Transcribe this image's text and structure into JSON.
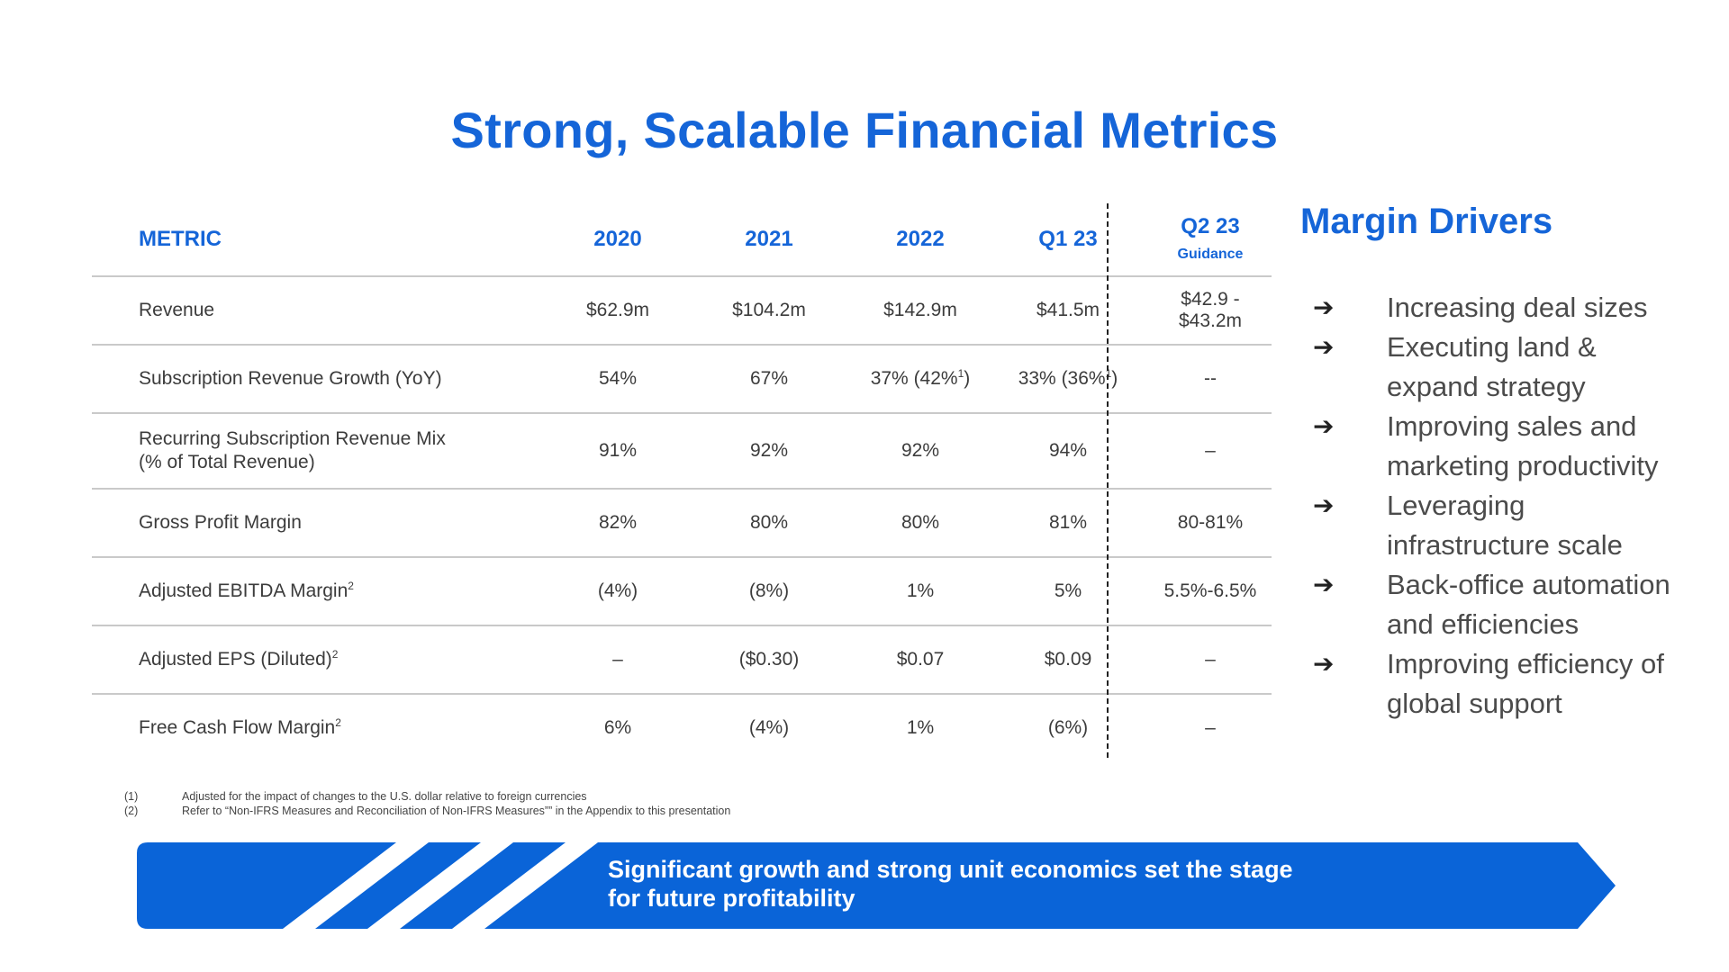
{
  "title": "Strong, Scalable Financial Metrics",
  "table": {
    "headers": [
      "METRIC",
      "2020",
      "2021",
      "2022",
      "Q1 23"
    ],
    "guidance_header": "Q2 23",
    "guidance_suffix": "Guidance",
    "rows": [
      {
        "metric": "Revenue",
        "sup": "",
        "v2020": "$62.9m",
        "v2021": "$104.2m",
        "v2022": "$142.9m",
        "q1": "$41.5m",
        "q2g": "$42.9 - $43.2m"
      },
      {
        "metric": "Subscription Revenue Growth (YoY)",
        "sup": "",
        "v2020": "54%",
        "v2021": "67%",
        "v2022": "37% (42%",
        "v2022_sup": "1",
        "v2022_tail": ")",
        "q1": "33% (36%",
        "q1_sup": "1",
        "q1_tail": ")",
        "q2g": "--"
      },
      {
        "metric": "Recurring Subscription Revenue Mix",
        "metric_line2": "(% of Total Revenue)",
        "sup": "",
        "v2020": "91%",
        "v2021": "92%",
        "v2022": "92%",
        "q1": "94%",
        "q2g": "–"
      },
      {
        "metric": "Gross Profit Margin",
        "sup": "",
        "v2020": "82%",
        "v2021": "80%",
        "v2022": "80%",
        "q1": "81%",
        "q2g": "80-81%"
      },
      {
        "metric": "Adjusted EBITDA Margin",
        "sup": "2",
        "v2020": "(4%)",
        "v2021": "(8%)",
        "v2022": "1%",
        "q1": "5%",
        "q2g": "5.5%-6.5%"
      },
      {
        "metric": "Adjusted EPS (Diluted)",
        "sup": "2",
        "v2020": "–",
        "v2021": "($0.30)",
        "v2022": "$0.07",
        "q1": "$0.09",
        "q2g": "–"
      },
      {
        "metric": "Free Cash Flow Margin",
        "sup": "2",
        "v2020": "6%",
        "v2021": "(4%)",
        "v2022": "1%",
        "q1": "(6%)",
        "q2g": "–"
      }
    ]
  },
  "margin_drivers": {
    "title": "Margin Drivers",
    "items": [
      "Increasing deal sizes",
      "Executing land & expand strategy",
      "Improving sales and marketing productivity",
      "Leveraging infrastructure scale",
      "Back-office automation and efficiencies",
      "Improving efficiency of global support"
    ]
  },
  "footnotes": [
    {
      "num": "(1)",
      "text": "Adjusted for the impact of changes to the U.S. dollar relative to foreign currencies"
    },
    {
      "num": "(2)",
      "text": "Refer to “Non-IFRS Measures and Reconciliation of Non-IFRS Measures”” in the Appendix to this presentation"
    }
  ],
  "banner": {
    "line1": "Significant growth and strong unit economics set the stage",
    "line2": "for future  profitability"
  },
  "colors": {
    "accent": "#1565d8",
    "banner": "#0a64d8"
  }
}
